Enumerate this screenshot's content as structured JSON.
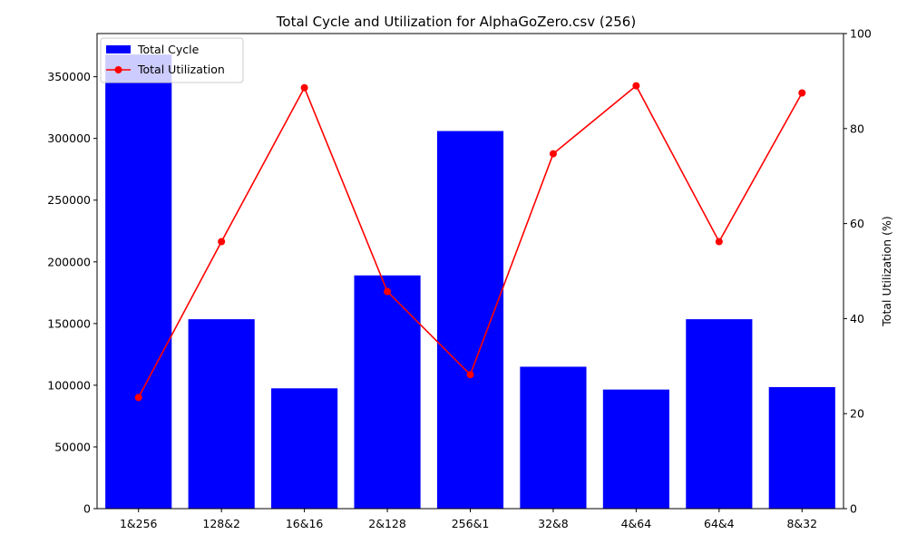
{
  "chart_data": {
    "type": "bar",
    "title": "Total Cycle and Utilization for AlphaGoZero.csv (256)",
    "xlabel": "",
    "categories": [
      "1&256",
      "128&2",
      "16&16",
      "2&128",
      "256&1",
      "32&8",
      "4&64",
      "64&4",
      "8&32"
    ],
    "series": [
      {
        "name": "Total Cycle",
        "type": "bar",
        "axis": "left",
        "color": "#0000ff",
        "values": [
          368000,
          153500,
          97500,
          189000,
          306000,
          115000,
          96500,
          153500,
          98500
        ]
      },
      {
        "name": "Total Utilization",
        "type": "line",
        "axis": "right",
        "color": "#ff0000",
        "marker": "circle",
        "values": [
          23.4,
          56.2,
          88.6,
          45.7,
          28.2,
          74.7,
          89.0,
          56.2,
          87.5
        ]
      }
    ],
    "y_left": {
      "label": "",
      "ylim": [
        0,
        385000
      ],
      "ticks": [
        0,
        50000,
        100000,
        150000,
        200000,
        250000,
        300000,
        350000
      ],
      "tick_labels": [
        "0",
        "50000",
        "100000",
        "150000",
        "200000",
        "250000",
        "300000",
        "350000"
      ]
    },
    "y_right": {
      "label": "Total Utilization (%)",
      "ylim": [
        0,
        100
      ],
      "ticks": [
        0,
        20,
        40,
        60,
        80,
        100
      ],
      "tick_labels": [
        "0",
        "20",
        "40",
        "60",
        "80",
        "100"
      ]
    },
    "grid": false,
    "legend_position": "top-left"
  }
}
